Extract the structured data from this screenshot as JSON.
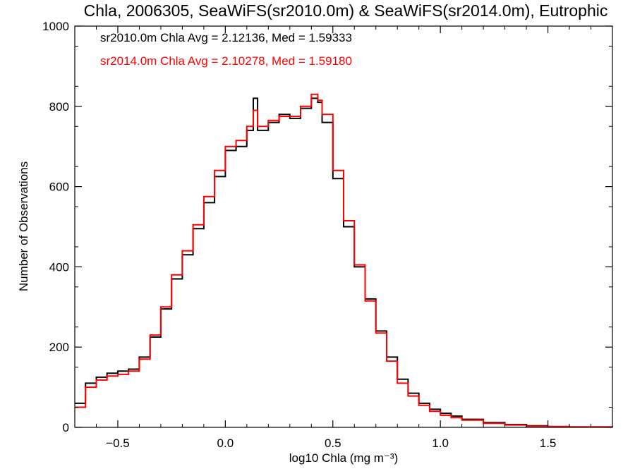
{
  "chart_data": {
    "type": "line",
    "title": "Chla, 2006305, SeaWiFS(sr2010.0m) & SeaWiFS(sr2014.0m), Eutrophic",
    "xlabel": "log10 Chla (mg m⁻³)",
    "ylabel": "Number of Observations",
    "xlim": [
      -0.7,
      1.8
    ],
    "ylim": [
      0,
      1000
    ],
    "grid": false,
    "x_ticks": [
      {
        "value": -0.5,
        "label": "−0.5"
      },
      {
        "value": 0.0,
        "label": "0.0"
      },
      {
        "value": 0.5,
        "label": "0.5"
      },
      {
        "value": 1.0,
        "label": "1.0"
      },
      {
        "value": 1.5,
        "label": "1.5"
      }
    ],
    "y_ticks": [
      {
        "value": 0,
        "label": "0"
      },
      {
        "value": 200,
        "label": "200"
      },
      {
        "value": 400,
        "label": "400"
      },
      {
        "value": 600,
        "label": "600"
      },
      {
        "value": 800,
        "label": "800"
      },
      {
        "value": 1000,
        "label": "1000"
      }
    ],
    "annotations": [
      {
        "text": "sr2010.0m Chla Avg = 2.12136, Med = 1.59333",
        "color": "#000000"
      },
      {
        "text": "sr2014.0m Chla Avg = 2.10278, Med = 1.59180",
        "color": "#ff0000"
      }
    ],
    "series": [
      {
        "color": "#000000",
        "points": [
          [
            -0.7,
            60
          ],
          [
            -0.65,
            110
          ],
          [
            -0.6,
            125
          ],
          [
            -0.55,
            135
          ],
          [
            -0.5,
            140
          ],
          [
            -0.45,
            145
          ],
          [
            -0.4,
            175
          ],
          [
            -0.35,
            225
          ],
          [
            -0.3,
            295
          ],
          [
            -0.25,
            370
          ],
          [
            -0.2,
            430
          ],
          [
            -0.15,
            495
          ],
          [
            -0.1,
            560
          ],
          [
            -0.05,
            625
          ],
          [
            0.0,
            690
          ],
          [
            0.05,
            700
          ],
          [
            0.1,
            740
          ],
          [
            0.13,
            820
          ],
          [
            0.15,
            740
          ],
          [
            0.2,
            760
          ],
          [
            0.25,
            780
          ],
          [
            0.3,
            770
          ],
          [
            0.35,
            795
          ],
          [
            0.4,
            820
          ],
          [
            0.43,
            810
          ],
          [
            0.45,
            760
          ],
          [
            0.5,
            620
          ],
          [
            0.55,
            500
          ],
          [
            0.6,
            400
          ],
          [
            0.65,
            320
          ],
          [
            0.7,
            240
          ],
          [
            0.75,
            175
          ],
          [
            0.8,
            120
          ],
          [
            0.85,
            85
          ],
          [
            0.9,
            60
          ],
          [
            0.95,
            45
          ],
          [
            1.0,
            35
          ],
          [
            1.05,
            28
          ],
          [
            1.1,
            20
          ],
          [
            1.2,
            12
          ],
          [
            1.3,
            7
          ],
          [
            1.4,
            4
          ],
          [
            1.5,
            2
          ],
          [
            1.6,
            1
          ],
          [
            1.7,
            1
          ],
          [
            1.8,
            0
          ]
        ]
      },
      {
        "color": "#ff0000",
        "points": [
          [
            -0.7,
            50
          ],
          [
            -0.65,
            100
          ],
          [
            -0.6,
            118
          ],
          [
            -0.55,
            128
          ],
          [
            -0.5,
            132
          ],
          [
            -0.45,
            140
          ],
          [
            -0.4,
            170
          ],
          [
            -0.35,
            230
          ],
          [
            -0.3,
            300
          ],
          [
            -0.25,
            380
          ],
          [
            -0.2,
            440
          ],
          [
            -0.15,
            505
          ],
          [
            -0.1,
            575
          ],
          [
            -0.05,
            640
          ],
          [
            0.0,
            700
          ],
          [
            0.05,
            715
          ],
          [
            0.1,
            750
          ],
          [
            0.13,
            790
          ],
          [
            0.15,
            750
          ],
          [
            0.2,
            765
          ],
          [
            0.25,
            775
          ],
          [
            0.3,
            775
          ],
          [
            0.35,
            800
          ],
          [
            0.4,
            830
          ],
          [
            0.43,
            815
          ],
          [
            0.45,
            780
          ],
          [
            0.5,
            640
          ],
          [
            0.55,
            515
          ],
          [
            0.6,
            405
          ],
          [
            0.65,
            315
          ],
          [
            0.7,
            235
          ],
          [
            0.75,
            165
          ],
          [
            0.8,
            110
          ],
          [
            0.85,
            78
          ],
          [
            0.9,
            55
          ],
          [
            0.95,
            40
          ],
          [
            1.0,
            30
          ],
          [
            1.05,
            24
          ],
          [
            1.1,
            18
          ],
          [
            1.2,
            10
          ],
          [
            1.3,
            6
          ],
          [
            1.4,
            3
          ],
          [
            1.5,
            2
          ],
          [
            1.6,
            1
          ],
          [
            1.7,
            1
          ],
          [
            1.8,
            0
          ]
        ]
      }
    ]
  }
}
